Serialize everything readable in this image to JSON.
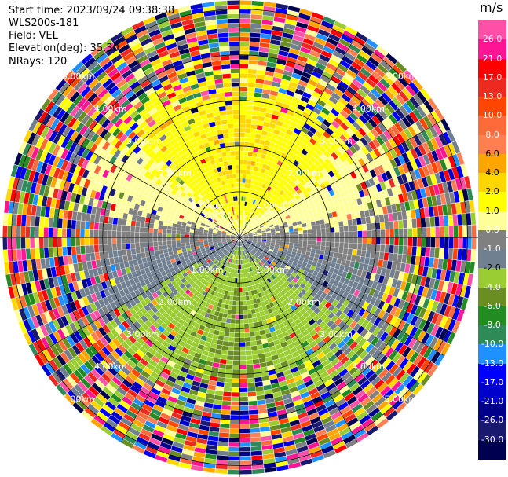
{
  "header": {
    "start_time": "Start time: 2023/09/24 09:38:38",
    "instrument": "WLS200s-181",
    "field": "Field: VEL",
    "elevation": "Elevation(deg): 35.30",
    "nrays": "NRays: 120"
  },
  "colorbar": {
    "unit": "m/s",
    "labels": [
      "26.0",
      "21.0",
      "17.0",
      "13.0",
      "10.0",
      "8.0",
      "6.0",
      "4.0",
      "2.0",
      "1.0",
      "0.0",
      "-1.0",
      "-2.0",
      "-4.0",
      "-6.0",
      "-8.0",
      "-10.0",
      "-13.0",
      "-17.0",
      "-21.0",
      "-26.0",
      "-30.0"
    ],
    "colors": [
      "#ff4fa6",
      "#ff1493",
      "#ff0000",
      "#ee2a20",
      "#ff4500",
      "#ff6a3a",
      "#ff7f50",
      "#ffa500",
      "#ffd700",
      "#ffff00",
      "#ffff99",
      "#808080",
      "#708090",
      "#9acd32",
      "#6b8e23",
      "#228b22",
      "#2e8b57",
      "#1e90ff",
      "#0000ff",
      "#0000cd",
      "#00008b",
      "#191970",
      "#000050"
    ]
  },
  "chart_data": {
    "type": "ppi",
    "field": "VEL",
    "units": "m/s",
    "nrays": 120,
    "elevation_deg": 35.3,
    "range_ring_labels": [
      "1.00km",
      "2.00km",
      "3.00km",
      "4.00km",
      "5.00km"
    ],
    "range_rings_km": [
      1,
      2,
      3,
      4,
      5
    ],
    "max_range_km": 5.2,
    "vmin": -30.0,
    "vmax": 30.0
  }
}
